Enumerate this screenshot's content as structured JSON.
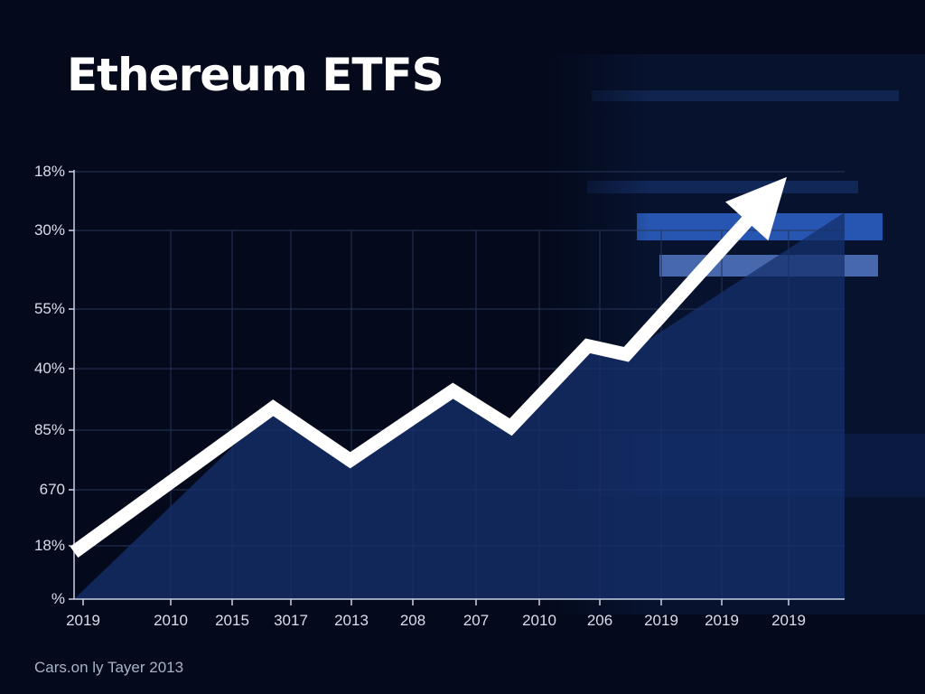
{
  "title": "Ethereum ETFS",
  "caption": "Cars.on ly Tayer 2013",
  "colors": {
    "background": "#040a1c",
    "line": "#ffffff",
    "grid": "#2a3658",
    "area_fill": "#16306e",
    "panel_accent": "#2d63c9"
  },
  "chart_data": {
    "type": "line",
    "title": "Ethereum ETFS",
    "xlabel": "",
    "ylabel": "",
    "x_tick_labels": [
      "2019",
      "2010",
      "2015",
      "3017",
      "2013",
      "208",
      "207",
      "2010",
      "206",
      "2019",
      "2019",
      "2019"
    ],
    "y_tick_labels": [
      "18%",
      "30%",
      "55%",
      "40%",
      "85%",
      "670",
      "18%",
      "%"
    ],
    "grid": true,
    "series": [
      {
        "x": [
          0,
          3.1,
          4.3,
          5.9,
          6.8,
          8.0,
          8.6,
          11.1
        ],
        "y": [
          0.88,
          3.58,
          2.6,
          3.9,
          3.22,
          4.74,
          4.58,
          7.9
        ]
      }
    ],
    "annotations": [
      "upward arrow at end of line"
    ]
  }
}
